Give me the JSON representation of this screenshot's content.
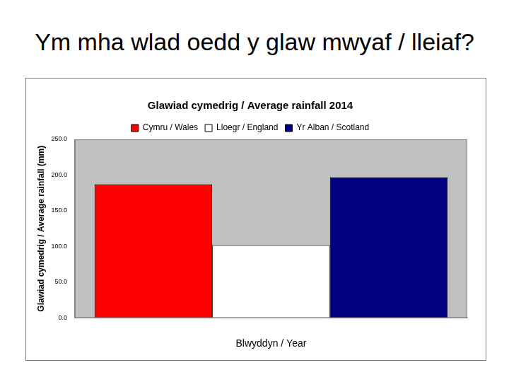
{
  "heading": "Ym mha wlad oedd y glaw mwyaf / lleiaf?",
  "chart_data": {
    "type": "bar",
    "title": "Glawiad cymedrig / Average rainfall 2014",
    "x_label": "Blwyddyn / Year",
    "y_label": "Glawiad cymedrig / Average rainfall (mm)",
    "categories": [
      null
    ],
    "series": [
      {
        "name": "Cymru / Wales",
        "color": "#ff0000",
        "values": [
          187
        ]
      },
      {
        "name": "Lloegr / England",
        "color": "#ffffff",
        "values": [
          102
        ]
      },
      {
        "name": "Yr Alban / Scotland",
        "color": "#000080",
        "values": [
          197
        ]
      }
    ],
    "ylim": [
      0,
      250
    ],
    "yticks": [
      {
        "value": 0,
        "label": "0.0"
      },
      {
        "value": 50,
        "label": "50.0"
      },
      {
        "value": 100,
        "label": "100.0"
      },
      {
        "value": 150,
        "label": "150.0"
      },
      {
        "value": 200,
        "label": "200.0"
      },
      {
        "value": 250,
        "label": "250.0"
      }
    ],
    "grid": false,
    "legend": "top"
  }
}
